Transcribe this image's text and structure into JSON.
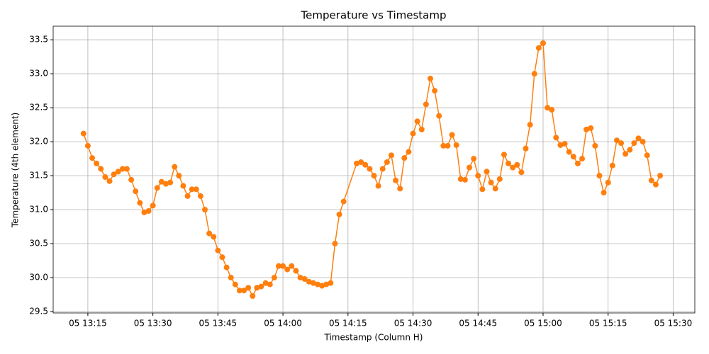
{
  "chart_data": {
    "type": "line",
    "title": "Temperature vs Timestamp",
    "x_label": "Timestamp (Column H)",
    "y_label": "Temperature (4th element)",
    "color": "#ff7f0e",
    "grid": true,
    "x": [
      "05 13:14",
      "05 13:15",
      "05 13:16",
      "05 13:17",
      "05 13:18",
      "05 13:19",
      "05 13:20",
      "05 13:21",
      "05 13:22",
      "05 13:23",
      "05 13:24",
      "05 13:25",
      "05 13:26",
      "05 13:27",
      "05 13:28",
      "05 13:29",
      "05 13:30",
      "05 13:31",
      "05 13:32",
      "05 13:33",
      "05 13:34",
      "05 13:35",
      "05 13:36",
      "05 13:37",
      "05 13:38",
      "05 13:39",
      "05 13:40",
      "05 13:41",
      "05 13:42",
      "05 13:43",
      "05 13:44",
      "05 13:45",
      "05 13:46",
      "05 13:47",
      "05 13:48",
      "05 13:49",
      "05 13:50",
      "05 13:51",
      "05 13:52",
      "05 13:53",
      "05 13:54",
      "05 13:55",
      "05 13:56",
      "05 13:57",
      "05 13:58",
      "05 13:59",
      "05 14:00",
      "05 14:01",
      "05 14:02",
      "05 14:03",
      "05 14:04",
      "05 14:05",
      "05 14:06",
      "05 14:07",
      "05 14:08",
      "05 14:09",
      "05 14:10",
      "05 14:11",
      "05 14:12",
      "05 14:13",
      "05 14:14",
      "05 14:17",
      "05 14:18",
      "05 14:19",
      "05 14:20",
      "05 14:21",
      "05 14:22",
      "05 14:23",
      "05 14:24",
      "05 14:25",
      "05 14:26",
      "05 14:27",
      "05 14:28",
      "05 14:29",
      "05 14:30",
      "05 14:31",
      "05 14:32",
      "05 14:33",
      "05 14:34",
      "05 14:35",
      "05 14:36",
      "05 14:37",
      "05 14:38",
      "05 14:39",
      "05 14:40",
      "05 14:41",
      "05 14:42",
      "05 14:43",
      "05 14:44",
      "05 14:45",
      "05 14:46",
      "05 14:47",
      "05 14:48",
      "05 14:49",
      "05 14:50",
      "05 14:51",
      "05 14:52",
      "05 14:53",
      "05 14:54",
      "05 14:55",
      "05 14:56",
      "05 14:57",
      "05 14:58",
      "05 14:59",
      "05 15:00",
      "05 15:01",
      "05 15:02",
      "05 15:03",
      "05 15:04",
      "05 15:05",
      "05 15:06",
      "05 15:07",
      "05 15:08",
      "05 15:09",
      "05 15:10",
      "05 15:11",
      "05 15:12",
      "05 15:13",
      "05 15:14",
      "05 15:15",
      "05 15:16",
      "05 15:17",
      "05 15:18",
      "05 15:19",
      "05 15:20",
      "05 15:21",
      "05 15:22",
      "05 15:23",
      "05 15:24",
      "05 15:25",
      "05 15:26",
      "05 15:27"
    ],
    "values": [
      32.12,
      31.94,
      31.76,
      31.68,
      31.6,
      31.48,
      31.42,
      31.52,
      31.56,
      31.6,
      31.6,
      31.44,
      31.27,
      31.1,
      30.96,
      30.98,
      31.06,
      31.32,
      31.41,
      31.38,
      31.4,
      31.63,
      31.5,
      31.35,
      31.2,
      31.3,
      31.3,
      31.2,
      31.0,
      30.65,
      30.6,
      30.4,
      30.3,
      30.15,
      30.0,
      29.9,
      29.81,
      29.81,
      29.85,
      29.73,
      29.85,
      29.87,
      29.92,
      29.9,
      30.0,
      30.17,
      30.17,
      30.12,
      30.17,
      30.1,
      30.0,
      29.98,
      29.94,
      29.92,
      29.9,
      29.88,
      29.9,
      29.92,
      30.5,
      30.93,
      31.12,
      31.68,
      31.7,
      31.66,
      31.6,
      31.5,
      31.35,
      31.6,
      31.7,
      31.8,
      31.43,
      31.31,
      31.76,
      31.85,
      32.12,
      32.3,
      32.18,
      32.55,
      32.93,
      32.75,
      32.38,
      31.94,
      31.94,
      32.1,
      31.95,
      31.45,
      31.44,
      31.62,
      31.75,
      31.5,
      31.3,
      31.56,
      31.4,
      31.31,
      31.45,
      31.81,
      31.68,
      31.62,
      31.66,
      31.55,
      31.9,
      32.25,
      33.0,
      33.38,
      33.45,
      32.5,
      32.47,
      32.06,
      31.95,
      31.97,
      31.85,
      31.78,
      31.68,
      31.75,
      32.18,
      32.2,
      31.94,
      31.5,
      31.25,
      31.4,
      31.65,
      32.02,
      31.98,
      31.82,
      31.88,
      31.98,
      32.05,
      32.0,
      31.8,
      31.43,
      31.37,
      31.5
    ],
    "xlim": [
      "05 13:07",
      "05 15:35"
    ],
    "xticks": [
      "05 13:15",
      "05 13:30",
      "05 13:45",
      "05 14:00",
      "05 14:15",
      "05 14:30",
      "05 14:45",
      "05 15:00",
      "05 15:15",
      "05 15:30"
    ],
    "ylim": [
      29.48,
      33.7
    ],
    "yticks": [
      29.5,
      {
        "value": 30,
        "label": "30.0"
      },
      30.5,
      {
        "value": 31,
        "label": "31.0"
      },
      31.5,
      {
        "value": 32,
        "label": "32.0"
      },
      32.5,
      {
        "value": 33,
        "label": "33.0"
      },
      33.5
    ]
  }
}
